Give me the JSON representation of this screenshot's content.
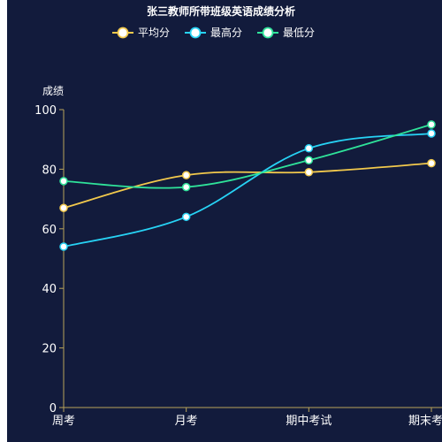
{
  "colors": {
    "background": "#121b3c",
    "axis": "#b8a35a",
    "text": "#ffffff"
  },
  "chart_data": {
    "type": "line",
    "title": "张三教师所带班级英语成绩分析",
    "ylabel": "成绩",
    "xlabel": "",
    "ylim": [
      0,
      100
    ],
    "yticks": [
      0,
      20,
      40,
      60,
      80,
      100
    ],
    "categories": [
      "周考",
      "月考",
      "期中考试",
      "期末考试"
    ],
    "legend_position": "top-center",
    "grid": false,
    "smooth": true,
    "series": [
      {
        "name": "平均分",
        "color": "#f2c94c",
        "values": [
          67,
          78,
          79,
          82
        ]
      },
      {
        "name": "最高分",
        "color": "#27d3f5",
        "values": [
          54,
          64,
          87,
          92
        ]
      },
      {
        "name": "最低分",
        "color": "#2fe39a",
        "values": [
          76,
          74,
          83,
          95
        ]
      }
    ]
  }
}
